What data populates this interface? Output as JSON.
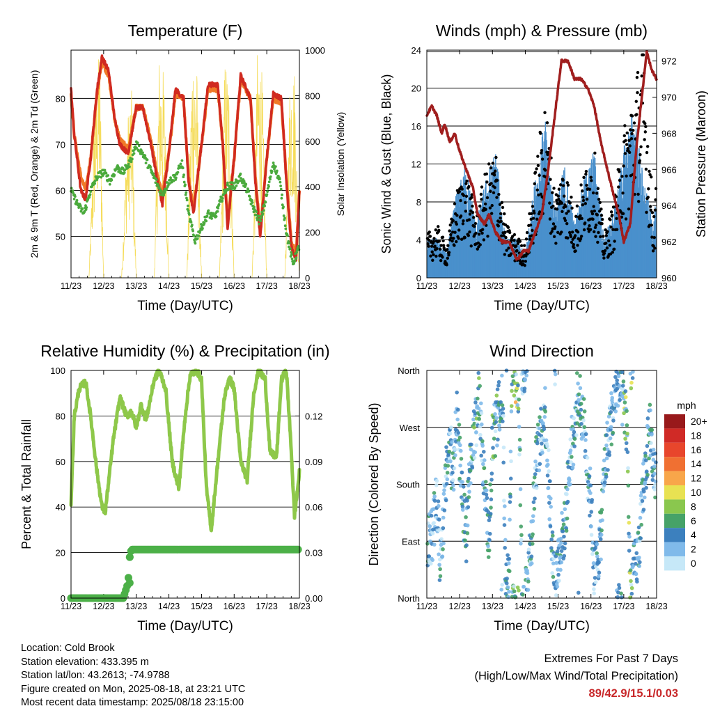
{
  "days": [
    "11/23",
    "12/23",
    "13/23",
    "14/23",
    "15/23",
    "16/23",
    "17/23",
    "18/23"
  ],
  "colors": {
    "temp2m": "#d02a20",
    "temp9m": "#f07a28",
    "dewpoint": "#4aaa3c",
    "solar": "#f5dc5a",
    "wind": "#4a90cc",
    "gust": "#000000",
    "pressure": "#a01e1e",
    "rh": "#8ec84a",
    "precip": "#4cb048"
  },
  "chart_data": [
    {
      "id": "temperature",
      "type": "line",
      "title": "Temperature (F)",
      "xlabel": "Time (Day/UTC)",
      "ylabel": "2m & 9m T (Red, Orange) & 2m Td (Green)",
      "y2label": "Solar Insolation (Yellow)",
      "x_ticks": [
        "11/23",
        "12/23",
        "13/23",
        "14/23",
        "15/23",
        "16/23",
        "17/23",
        "18/23"
      ],
      "y_ticks": [
        50,
        60,
        70,
        80
      ],
      "ylim": [
        41,
        90.5
      ],
      "y2_ticks": [
        0,
        200,
        400,
        600,
        800,
        1000
      ],
      "y2lim": [
        0,
        1000
      ],
      "grid": true,
      "series": [
        {
          "x": [
            0,
            0.1,
            0.3,
            0.45,
            0.6,
            0.8,
            0.95,
            1.15,
            1.35,
            1.5,
            1.75,
            2.0,
            2.2,
            2.45,
            2.65,
            2.8,
            3.0,
            3.2,
            3.45,
            3.6,
            3.75,
            4.0,
            4.2,
            4.5,
            4.65,
            4.8,
            5.0,
            5.2,
            5.5,
            5.65,
            5.8,
            6.0,
            6.2,
            6.45,
            6.6,
            6.75,
            6.9,
            7.0
          ],
          "y": [
            82,
            72,
            60,
            58,
            67,
            82,
            89,
            86,
            75,
            70,
            68,
            78,
            78,
            70,
            62,
            57,
            68,
            82,
            80,
            62,
            55,
            70,
            83,
            83,
            70,
            52,
            67,
            85,
            80,
            62,
            50,
            67,
            81,
            80,
            62,
            48,
            45,
            60
          ]
        },
        {
          "x": [
            0,
            0.1,
            0.3,
            0.45,
            0.6,
            0.8,
            0.95,
            1.15,
            1.35,
            1.5,
            1.75,
            2.0,
            2.2,
            2.45,
            2.65,
            2.8,
            3.0,
            3.2,
            3.45,
            3.6,
            3.75,
            4.0,
            4.2,
            4.5,
            4.65,
            4.8,
            5.0,
            5.2,
            5.5,
            5.65,
            5.8,
            6.0,
            6.2,
            6.45,
            6.6,
            6.75,
            6.9,
            7.0
          ],
          "y": [
            81,
            72,
            63,
            60,
            67,
            81,
            88,
            85,
            75,
            71,
            69,
            78,
            78,
            71,
            63,
            59,
            68,
            81,
            80,
            63,
            56,
            70,
            82,
            82,
            70,
            53,
            67,
            84,
            80,
            63,
            51,
            67,
            80,
            79,
            63,
            49,
            46,
            60
          ]
        },
        {
          "x": [
            0,
            0.2,
            0.4,
            0.6,
            0.8,
            1.0,
            1.2,
            1.4,
            1.6,
            1.8,
            2.0,
            2.2,
            2.4,
            2.6,
            2.8,
            3.0,
            3.2,
            3.4,
            3.6,
            3.8,
            4.0,
            4.2,
            4.4,
            4.6,
            4.8,
            5.0,
            5.2,
            5.4,
            5.6,
            5.8,
            6.0,
            6.2,
            6.4,
            6.6,
            6.8,
            7.0
          ],
          "y": [
            60,
            57,
            55,
            60,
            63,
            64,
            62,
            65,
            64,
            66,
            70,
            68,
            65,
            62,
            59,
            62,
            63,
            66,
            55,
            49,
            52,
            55,
            54,
            58,
            61,
            61,
            63,
            60,
            56,
            53,
            59,
            66,
            62,
            51,
            44,
            48
          ]
        },
        {
          "x": [
            0,
            0.55,
            0.72,
            0.88,
            1.0,
            1.55,
            1.72,
            1.85,
            2.0,
            2.55,
            2.7,
            2.86,
            3.0,
            3.55,
            3.72,
            3.86,
            4.0,
            4.55,
            4.72,
            4.86,
            5.0,
            5.55,
            5.72,
            5.86,
            6.0,
            6.55,
            6.72,
            6.86,
            7.0
          ],
          "y": [
            0,
            0,
            700,
            950,
            0,
            0,
            620,
            780,
            0,
            0,
            900,
            820,
            0,
            0,
            950,
            840,
            0,
            0,
            900,
            800,
            0,
            0,
            950,
            820,
            0,
            0,
            880,
            850,
            0
          ]
        }
      ]
    },
    {
      "id": "winds",
      "type": "line",
      "title": "Winds (mph) & Pressure (mb)",
      "xlabel": "Time (Day/UTC)",
      "ylabel": "Sonic Wind & Gust (Blue, Black)",
      "y2label": "Station Pressure (Maroon)",
      "x_ticks": [
        "11/23",
        "12/23",
        "13/23",
        "14/23",
        "15/23",
        "16/23",
        "17/23",
        "18/23"
      ],
      "y_ticks": [
        0,
        4,
        8,
        12,
        16,
        20,
        24
      ],
      "ylim": [
        0,
        24
      ],
      "y2_ticks": [
        960,
        962,
        964,
        966,
        968,
        970,
        972
      ],
      "y2lim": [
        960,
        972.6
      ],
      "grid": true,
      "series": [
        {
          "x": [
            0,
            0.3,
            0.6,
            0.9,
            1.2,
            1.5,
            1.8,
            2.1,
            2.4,
            2.7,
            3.0,
            3.3,
            3.6,
            3.9,
            4.2,
            4.5,
            4.8,
            5.1,
            5.4,
            5.7,
            6.0,
            6.3,
            6.6,
            6.9,
            7.0
          ],
          "y": [
            2,
            2,
            1,
            5,
            7,
            3,
            6,
            8,
            2,
            2,
            1,
            6,
            10,
            4,
            7,
            3,
            6,
            8,
            2,
            4,
            8,
            11,
            6,
            3,
            5
          ]
        },
        {
          "x": [
            0,
            0.3,
            0.6,
            0.9,
            1.2,
            1.5,
            1.8,
            2.1,
            2.4,
            2.7,
            3.0,
            3.3,
            3.6,
            3.9,
            4.2,
            4.5,
            4.8,
            5.1,
            5.4,
            5.7,
            6.0,
            6.3,
            6.6,
            6.9,
            7.0
          ],
          "y": [
            4,
            5,
            3,
            8,
            10,
            6,
            10,
            12,
            5,
            4,
            3,
            10,
            17,
            8,
            11,
            6,
            10,
            12,
            4,
            7,
            14,
            18,
            22,
            6,
            9
          ]
        },
        {
          "x": [
            0,
            0.15,
            0.3,
            0.45,
            0.55,
            0.7,
            0.85,
            1.0,
            1.2,
            1.4,
            1.55,
            1.75,
            1.9,
            2.1,
            2.3,
            2.5,
            2.75,
            2.95,
            3.1,
            3.3,
            3.5,
            3.7,
            3.9,
            4.1,
            4.3,
            4.5,
            4.7,
            4.9,
            5.1,
            5.3,
            5.5,
            5.7,
            5.85,
            6.0,
            6.2,
            6.4,
            6.55,
            6.7,
            6.85,
            7.0
          ],
          "y": [
            969,
            969.5,
            969,
            968,
            968.5,
            967.5,
            968,
            967,
            966,
            965,
            963.5,
            963,
            963.5,
            962.5,
            962,
            962,
            961,
            961.5,
            961.5,
            962.5,
            963.5,
            966,
            969,
            972,
            972,
            971,
            971,
            970.5,
            969.5,
            967.5,
            966,
            964.5,
            963.5,
            962,
            963,
            967.5,
            970,
            972.5,
            971.5,
            971
          ]
        }
      ]
    },
    {
      "id": "humidity",
      "type": "line",
      "title": "Relative Humidity (%) & Precipitation (in)",
      "xlabel": "Time (Day/UTC)",
      "ylabel": "Percent & Total Rainfall",
      "x_ticks": [
        "11/23",
        "12/23",
        "13/23",
        "14/23",
        "15/23",
        "16/23",
        "17/23",
        "18/23"
      ],
      "y_ticks": [
        0,
        20,
        40,
        60,
        80,
        100
      ],
      "ylim": [
        0,
        100
      ],
      "y2_ticks": [
        "0.00",
        "0.03",
        "0.06",
        "0.09",
        "0.12"
      ],
      "y2lim": [
        0,
        0.15
      ],
      "grid": true,
      "series": [
        {
          "x": [
            0,
            0.1,
            0.25,
            0.45,
            0.6,
            0.8,
            0.95,
            1.05,
            1.3,
            1.5,
            1.7,
            1.85,
            2.0,
            2.15,
            2.3,
            2.55,
            2.7,
            2.9,
            3.1,
            3.3,
            3.5,
            3.65,
            3.85,
            4.0,
            4.15,
            4.3,
            4.5,
            4.7,
            4.85,
            5.0,
            5.2,
            5.4,
            5.6,
            5.75,
            5.95,
            6.1,
            6.3,
            6.45,
            6.6,
            6.75,
            6.85,
            7.0
          ],
          "y": [
            42,
            80,
            92,
            95,
            80,
            55,
            40,
            38,
            70,
            88,
            80,
            82,
            75,
            85,
            78,
            96,
            100,
            92,
            60,
            48,
            80,
            98,
            100,
            96,
            48,
            30,
            60,
            88,
            97,
            92,
            60,
            52,
            90,
            100,
            96,
            64,
            62,
            96,
            100,
            65,
            36,
            55
          ]
        },
        {
          "x": [
            0,
            0.2,
            0.4,
            0.6,
            0.8,
            1.0,
            1.2,
            1.4,
            1.6,
            1.75,
            1.8,
            1.85,
            2.0,
            2.5,
            3.0,
            3.5,
            4.0,
            4.5,
            5.0,
            5.5,
            6.0,
            6.5,
            7.0
          ],
          "y": [
            0,
            0,
            0,
            0,
            0,
            0,
            0,
            0,
            0,
            0.01,
            0.027,
            0.032,
            0.032,
            0.032,
            0.032,
            0.032,
            0.032,
            0.032,
            0.032,
            0.032,
            0.032,
            0.032,
            0.032
          ]
        }
      ]
    },
    {
      "id": "wind_direction",
      "type": "scatter",
      "title": "Wind Direction",
      "xlabel": "Time (Day/UTC)",
      "ylabel": "Direction (Colored By Speed)",
      "x_ticks": [
        "11/23",
        "12/23",
        "13/23",
        "14/23",
        "15/23",
        "16/23",
        "17/23",
        "18/23"
      ],
      "y_ticks": [
        "North",
        "East",
        "South",
        "West",
        "North"
      ],
      "ylim": [
        0,
        360
      ],
      "legend_title": "mph",
      "legend_labels": [
        "20+",
        "18",
        "16",
        "14",
        "12",
        "10",
        "8",
        "6",
        "4",
        "2",
        "0"
      ],
      "legend_colors": [
        "#98191b",
        "#d02a26",
        "#e8462c",
        "#f07032",
        "#f8a64a",
        "#e8e252",
        "#8ac74e",
        "#46a268",
        "#3c80be",
        "#80baea",
        "#c6e8f8"
      ],
      "grid": true,
      "series": [
        {
          "x": [
            0.1,
            0.2,
            0.3,
            0.4,
            0.5,
            0.6,
            0.7,
            0.8,
            0.9,
            1.0,
            1.1,
            1.2,
            1.3,
            1.4,
            1.5,
            1.6,
            1.7,
            1.8,
            1.9,
            2.0,
            2.1,
            2.2,
            2.3,
            2.4,
            2.5,
            2.6,
            2.7,
            2.8,
            2.9,
            3.0,
            3.1,
            3.2,
            3.3,
            3.4,
            3.5,
            3.6,
            3.7,
            3.8,
            3.9,
            4.0,
            4.1,
            4.2,
            4.3,
            4.4,
            4.5,
            4.6,
            4.7,
            4.8,
            4.9,
            5.0,
            5.1,
            5.2,
            5.3,
            5.4,
            5.5,
            5.6,
            5.7,
            5.8,
            5.9,
            6.0,
            6.1,
            6.2,
            6.3,
            6.4,
            6.5,
            6.6,
            6.7,
            6.8,
            6.9
          ],
          "y": [
            90,
            110,
            160,
            60,
            120,
            200,
            250,
            190,
            300,
            220,
            140,
            100,
            190,
            240,
            280,
            330,
            210,
            150,
            100,
            250,
            270,
            300,
            340,
            30,
            20,
            350,
            340,
            330,
            5,
            10,
            60,
            100,
            200,
            240,
            260,
            300,
            200,
            100,
            20,
            60,
            90,
            110,
            180,
            240,
            260,
            330,
            300,
            270,
            200,
            150,
            40,
            60,
            100,
            200,
            240,
            280,
            300,
            350,
            330,
            300,
            270,
            10,
            40,
            60,
            100,
            180,
            220,
            280,
            200
          ]
        }
      ]
    }
  ],
  "info": {
    "location": "Location: Cold Brook",
    "elevation": "Station elevation: 433.395 m",
    "latlon": "Station lat/lon: 43.2613; -74.9788",
    "created": "Figure created on Mon, 2025-08-18, at 23:21 UTC",
    "recent": "Most recent data timestamp: 2025/08/18 23:15:00"
  },
  "extremes": {
    "title": "Extremes For Past 7 Days",
    "subtitle": "(High/Low/Max Wind/Total Precipitation)",
    "values": "89/42.9/15.1/0.03"
  }
}
